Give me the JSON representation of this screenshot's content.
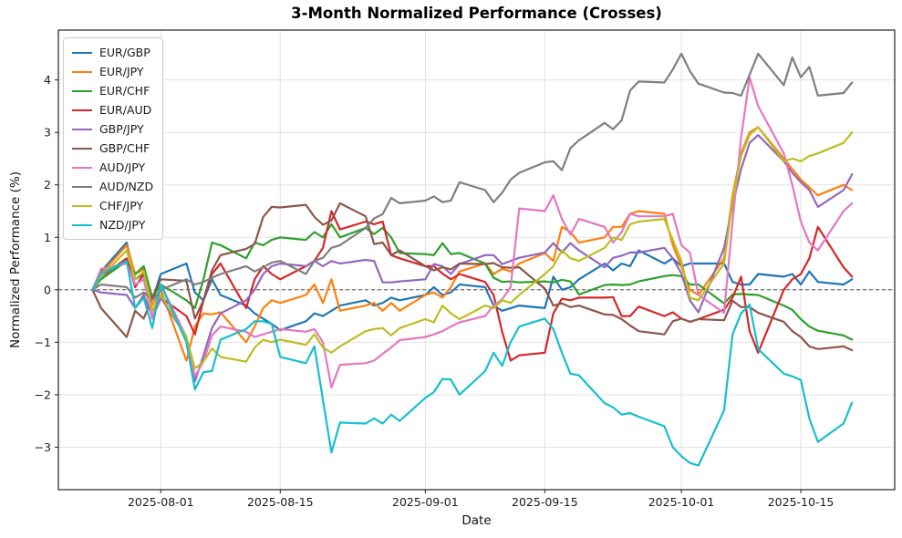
{
  "chart_data": {
    "type": "line",
    "title": "3-Month Normalized Performance (Crosses)",
    "xlabel": "Date",
    "ylabel": "Normalized Performance (%)",
    "grid": true,
    "legend_position": "upper left",
    "zero_line": {
      "value": 0,
      "style": "dashed",
      "color": "#555555"
    },
    "ylim": [
      -3.81,
      4.95
    ],
    "xlim": [
      "2025-07-20",
      "2025-10-26"
    ],
    "y_ticks": [
      {
        "value": -3,
        "label": "−3"
      },
      {
        "value": -2,
        "label": "−2"
      },
      {
        "value": -1,
        "label": "−1"
      },
      {
        "value": 0,
        "label": "0"
      },
      {
        "value": 1,
        "label": "1"
      },
      {
        "value": 2,
        "label": "2"
      },
      {
        "value": 3,
        "label": "3"
      },
      {
        "value": 4,
        "label": "4"
      }
    ],
    "x_ticks": [
      {
        "date": "2025-08-01",
        "label": "2025-08-01"
      },
      {
        "date": "2025-08-15",
        "label": "2025-08-15"
      },
      {
        "date": "2025-09-01",
        "label": "2025-09-01"
      },
      {
        "date": "2025-09-15",
        "label": "2025-09-15"
      },
      {
        "date": "2025-10-01",
        "label": "2025-10-01"
      },
      {
        "date": "2025-10-15",
        "label": "2025-10-15"
      }
    ],
    "dates": [
      "2025-07-24",
      "2025-07-25",
      "2025-07-28",
      "2025-07-29",
      "2025-07-30",
      "2025-07-31",
      "2025-08-01",
      "2025-08-04",
      "2025-08-05",
      "2025-08-06",
      "2025-08-07",
      "2025-08-08",
      "2025-08-11",
      "2025-08-12",
      "2025-08-13",
      "2025-08-14",
      "2025-08-15",
      "2025-08-18",
      "2025-08-19",
      "2025-08-20",
      "2025-08-21",
      "2025-08-22",
      "2025-08-25",
      "2025-08-26",
      "2025-08-27",
      "2025-08-28",
      "2025-08-29",
      "2025-09-01",
      "2025-09-02",
      "2025-09-03",
      "2025-09-04",
      "2025-09-05",
      "2025-09-08",
      "2025-09-09",
      "2025-09-10",
      "2025-09-11",
      "2025-09-12",
      "2025-09-15",
      "2025-09-16",
      "2025-09-17",
      "2025-09-18",
      "2025-09-19",
      "2025-09-22",
      "2025-09-23",
      "2025-09-24",
      "2025-09-25",
      "2025-09-26",
      "2025-09-29",
      "2025-09-30",
      "2025-10-01",
      "2025-10-02",
      "2025-10-03",
      "2025-10-06",
      "2025-10-07",
      "2025-10-08",
      "2025-10-09",
      "2025-10-10",
      "2025-10-13",
      "2025-10-14",
      "2025-10-15",
      "2025-10-16",
      "2025-10-17",
      "2025-10-20",
      "2025-10-21"
    ],
    "series": [
      {
        "name": "EUR/GBP",
        "color": "#1f77b4",
        "values": [
          0,
          0.35,
          0.9,
          0.2,
          0.3,
          -0.2,
          0.3,
          0.5,
          -0.05,
          -0.2,
          0.2,
          -0.1,
          -0.3,
          -0.45,
          -0.55,
          -0.65,
          -0.77,
          -0.6,
          -0.45,
          -0.5,
          -0.4,
          -0.3,
          -0.2,
          -0.3,
          -0.25,
          -0.15,
          -0.2,
          -0.1,
          0.05,
          -0.1,
          -0.05,
          0.1,
          0.05,
          -0.3,
          -0.4,
          -0.35,
          -0.3,
          -0.35,
          0.25,
          0,
          0.05,
          0.2,
          0.5,
          0.37,
          0.5,
          0.45,
          0.75,
          0.5,
          0.6,
          0.45,
          0.5,
          0.5,
          0.5,
          0.15,
          0.1,
          0.1,
          0.3,
          0.25,
          0.3,
          0.1,
          0.35,
          0.15,
          0.1,
          0.2
        ]
      },
      {
        "name": "EUR/JPY",
        "color": "#ff7f0e",
        "values": [
          0,
          0.3,
          0.85,
          0.3,
          0.4,
          -0.3,
          0,
          -1.35,
          -0.7,
          -0.45,
          -0.47,
          -0.43,
          -1.0,
          -0.7,
          -0.35,
          -0.2,
          -0.25,
          -0.1,
          0.1,
          -0.25,
          0.2,
          -0.4,
          -0.3,
          -0.25,
          -0.4,
          -0.25,
          -0.4,
          -0.1,
          -0.05,
          -0.15,
          0.05,
          0.35,
          0.5,
          0.3,
          0.4,
          0.35,
          0.5,
          0.7,
          0.55,
          1.2,
          1.1,
          0.9,
          1.0,
          1.2,
          1.2,
          1.45,
          1.5,
          1.45,
          0.85,
          0.45,
          0,
          -0.1,
          0.6,
          1.8,
          2.6,
          3.0,
          3.1,
          2.5,
          2.3,
          2.1,
          1.95,
          1.8,
          2.0,
          1.9
        ]
      },
      {
        "name": "EUR/CHF",
        "color": "#2ca02c",
        "values": [
          0,
          0.2,
          0.55,
          0.3,
          0.45,
          -0.15,
          0.1,
          -0.2,
          -0.35,
          0.2,
          0.9,
          0.85,
          0.6,
          0.9,
          0.85,
          0.95,
          1.0,
          0.95,
          1.1,
          1.0,
          1.25,
          1.0,
          1.18,
          1.06,
          1.18,
          1.0,
          0.7,
          0.68,
          0.66,
          0.89,
          0.68,
          0.7,
          0.5,
          0.23,
          0.15,
          0.16,
          0.14,
          0.16,
          0.14,
          0.19,
          0.16,
          -0.09,
          0.09,
          0.1,
          0.09,
          0.1,
          0.16,
          0.26,
          0.28,
          0.26,
          0.1,
          0.1,
          -0.26,
          -0.09,
          -0.08,
          -0.09,
          -0.1,
          -0.3,
          -0.38,
          -0.56,
          -0.7,
          -0.78,
          -0.87,
          -0.95
        ]
      },
      {
        "name": "EUR/AUD",
        "color": "#d62728",
        "values": [
          0,
          0.25,
          0.6,
          0.05,
          0.3,
          -0.55,
          -0.15,
          -0.5,
          -0.85,
          -0.2,
          0.3,
          0.5,
          -0.35,
          0.2,
          0.45,
          0.3,
          0.2,
          0.45,
          0.55,
          0.8,
          1.5,
          1.15,
          1.3,
          1.25,
          1.3,
          0.66,
          0.6,
          0.45,
          0.45,
          0.31,
          0.2,
          0.3,
          0.15,
          -0.1,
          -0.8,
          -1.35,
          -1.25,
          -1.2,
          -0.45,
          -0.17,
          -0.2,
          -0.15,
          -0.15,
          -0.14,
          -0.5,
          -0.5,
          -0.32,
          -0.5,
          -0.43,
          -0.55,
          -0.61,
          -0.56,
          -0.38,
          -0.15,
          0.25,
          -0.79,
          -1.2,
          0.0,
          0.2,
          0.3,
          0.6,
          1.2,
          0.43,
          0.25
        ]
      },
      {
        "name": "GBP/JPY",
        "color": "#9467bd",
        "values": [
          0,
          -0.05,
          -0.1,
          -0.35,
          -0.1,
          -0.5,
          -0.15,
          -0.9,
          -1.75,
          -1.25,
          -0.73,
          -0.45,
          -0.2,
          0,
          0.3,
          0.45,
          0.5,
          0.45,
          0.55,
          0.45,
          0.55,
          0.5,
          0.57,
          0.55,
          0.14,
          0.14,
          0.16,
          0.2,
          0.49,
          0.45,
          0.3,
          0.49,
          0.66,
          0.66,
          0.49,
          0.55,
          0.61,
          0.71,
          0.89,
          0.71,
          0.89,
          0.75,
          0.43,
          0.61,
          0.65,
          0.71,
          0.71,
          0.8,
          0.6,
          0.31,
          -0.2,
          -0.43,
          0.8,
          1.6,
          2.3,
          2.8,
          2.95,
          2.45,
          2.23,
          2.05,
          1.9,
          1.58,
          1.9,
          2.2
        ]
      },
      {
        "name": "GBP/CHF",
        "color": "#8c564b",
        "values": [
          0,
          -0.35,
          -0.9,
          -0.4,
          -0.55,
          -0.15,
          0.2,
          0.17,
          -0.55,
          -0.2,
          0.37,
          0.66,
          0.78,
          0.87,
          1.39,
          1.58,
          1.57,
          1.62,
          1.39,
          1.24,
          1.32,
          1.65,
          1.4,
          0.87,
          0.9,
          0.66,
          0.75,
          0.45,
          0.37,
          0.43,
          0.39,
          0.5,
          0.49,
          0.51,
          0.43,
          0.42,
          0.43,
          0.02,
          -0.3,
          -0.26,
          -0.33,
          -0.3,
          -0.47,
          -0.48,
          -0.56,
          -0.68,
          -0.79,
          -0.85,
          -0.6,
          -0.55,
          -0.61,
          -0.56,
          -0.58,
          -0.21,
          -0.33,
          -0.33,
          -0.44,
          -0.61,
          -0.79,
          -0.9,
          -1.08,
          -1.13,
          -1.08,
          -1.15
        ]
      },
      {
        "name": "AUD/JPY",
        "color": "#e377c2",
        "values": [
          0,
          0.4,
          0.5,
          0.1,
          0.2,
          -0.55,
          0.1,
          -0.9,
          -1.65,
          -1.37,
          -0.87,
          -0.7,
          -0.8,
          -0.9,
          -0.85,
          -0.8,
          -0.75,
          -0.8,
          -0.75,
          -1.0,
          -1.86,
          -1.43,
          -1.4,
          -1.35,
          -1.22,
          -1.1,
          -0.96,
          -0.9,
          -0.85,
          -0.79,
          -0.7,
          -0.62,
          -0.5,
          -0.3,
          -0.18,
          0.05,
          1.55,
          1.5,
          1.8,
          1.35,
          1.05,
          1.35,
          1.2,
          0.9,
          1.1,
          1.45,
          1.4,
          1.4,
          1.45,
          0.85,
          0.71,
          -0.1,
          -0.44,
          1.3,
          2.9,
          4.05,
          3.5,
          2.6,
          2.0,
          1.3,
          0.9,
          0.75,
          1.5,
          1.65
        ]
      },
      {
        "name": "AUD/NZD",
        "color": "#7f7f7f",
        "values": [
          0,
          0.1,
          0.05,
          -0.15,
          -0.05,
          -0.2,
          0,
          0.2,
          0.1,
          0.15,
          0.23,
          0.3,
          0.45,
          0.35,
          0.43,
          0.52,
          0.55,
          0.3,
          0.55,
          0.61,
          0.8,
          0.85,
          1.18,
          1.36,
          1.44,
          1.75,
          1.65,
          1.7,
          1.78,
          1.67,
          1.7,
          2.05,
          1.9,
          1.67,
          1.85,
          2.1,
          2.23,
          2.43,
          2.45,
          2.28,
          2.7,
          2.85,
          3.18,
          3.06,
          3.23,
          3.8,
          3.97,
          3.95,
          4.2,
          4.5,
          4.17,
          3.93,
          3.76,
          3.75,
          3.7,
          4.1,
          4.5,
          3.9,
          4.43,
          4.05,
          4.25,
          3.7,
          3.75,
          3.95
        ]
      },
      {
        "name": "CHF/JPY",
        "color": "#bcbd22",
        "values": [
          0,
          0.25,
          0.75,
          0.2,
          0.35,
          -0.4,
          -0.1,
          -0.9,
          -1.5,
          -1.37,
          -1.12,
          -1.28,
          -1.37,
          -1.1,
          -0.95,
          -1.0,
          -0.95,
          -1.05,
          -0.85,
          -1.1,
          -1.2,
          -1.08,
          -0.79,
          -0.75,
          -0.73,
          -0.87,
          -0.73,
          -0.56,
          -0.62,
          -0.3,
          -0.45,
          -0.56,
          -0.3,
          -0.35,
          -0.2,
          -0.25,
          -0.1,
          0.3,
          0.45,
          0.75,
          0.6,
          0.55,
          0.8,
          1.0,
          0.95,
          1.25,
          1.3,
          1.35,
          0.95,
          0.55,
          -0.15,
          -0.2,
          0.5,
          1.7,
          2.55,
          2.95,
          3.1,
          2.45,
          2.5,
          2.45,
          2.55,
          2.6,
          2.8,
          3.0
        ]
      },
      {
        "name": "NZD/JPY",
        "color": "#17becf",
        "values": [
          0,
          0.3,
          0.55,
          -0.35,
          -0.15,
          -0.73,
          0.1,
          -1.0,
          -1.9,
          -1.57,
          -1.55,
          -0.95,
          -0.75,
          -0.6,
          -0.6,
          -0.65,
          -1.28,
          -1.4,
          -1.08,
          -2.1,
          -3.1,
          -2.53,
          -2.55,
          -2.45,
          -2.55,
          -2.38,
          -2.5,
          -2.06,
          -1.95,
          -1.7,
          -1.71,
          -2.0,
          -1.55,
          -1.2,
          -1.45,
          -1.0,
          -0.7,
          -0.55,
          -0.75,
          -1.2,
          -1.6,
          -1.63,
          -2.16,
          -2.24,
          -2.38,
          -2.35,
          -2.42,
          -2.6,
          -3.0,
          -3.17,
          -3.3,
          -3.35,
          -2.3,
          -0.85,
          -0.45,
          -0.28,
          -1.13,
          -1.6,
          -1.65,
          -1.72,
          -2.45,
          -2.9,
          -2.55,
          -2.15
        ]
      }
    ]
  }
}
